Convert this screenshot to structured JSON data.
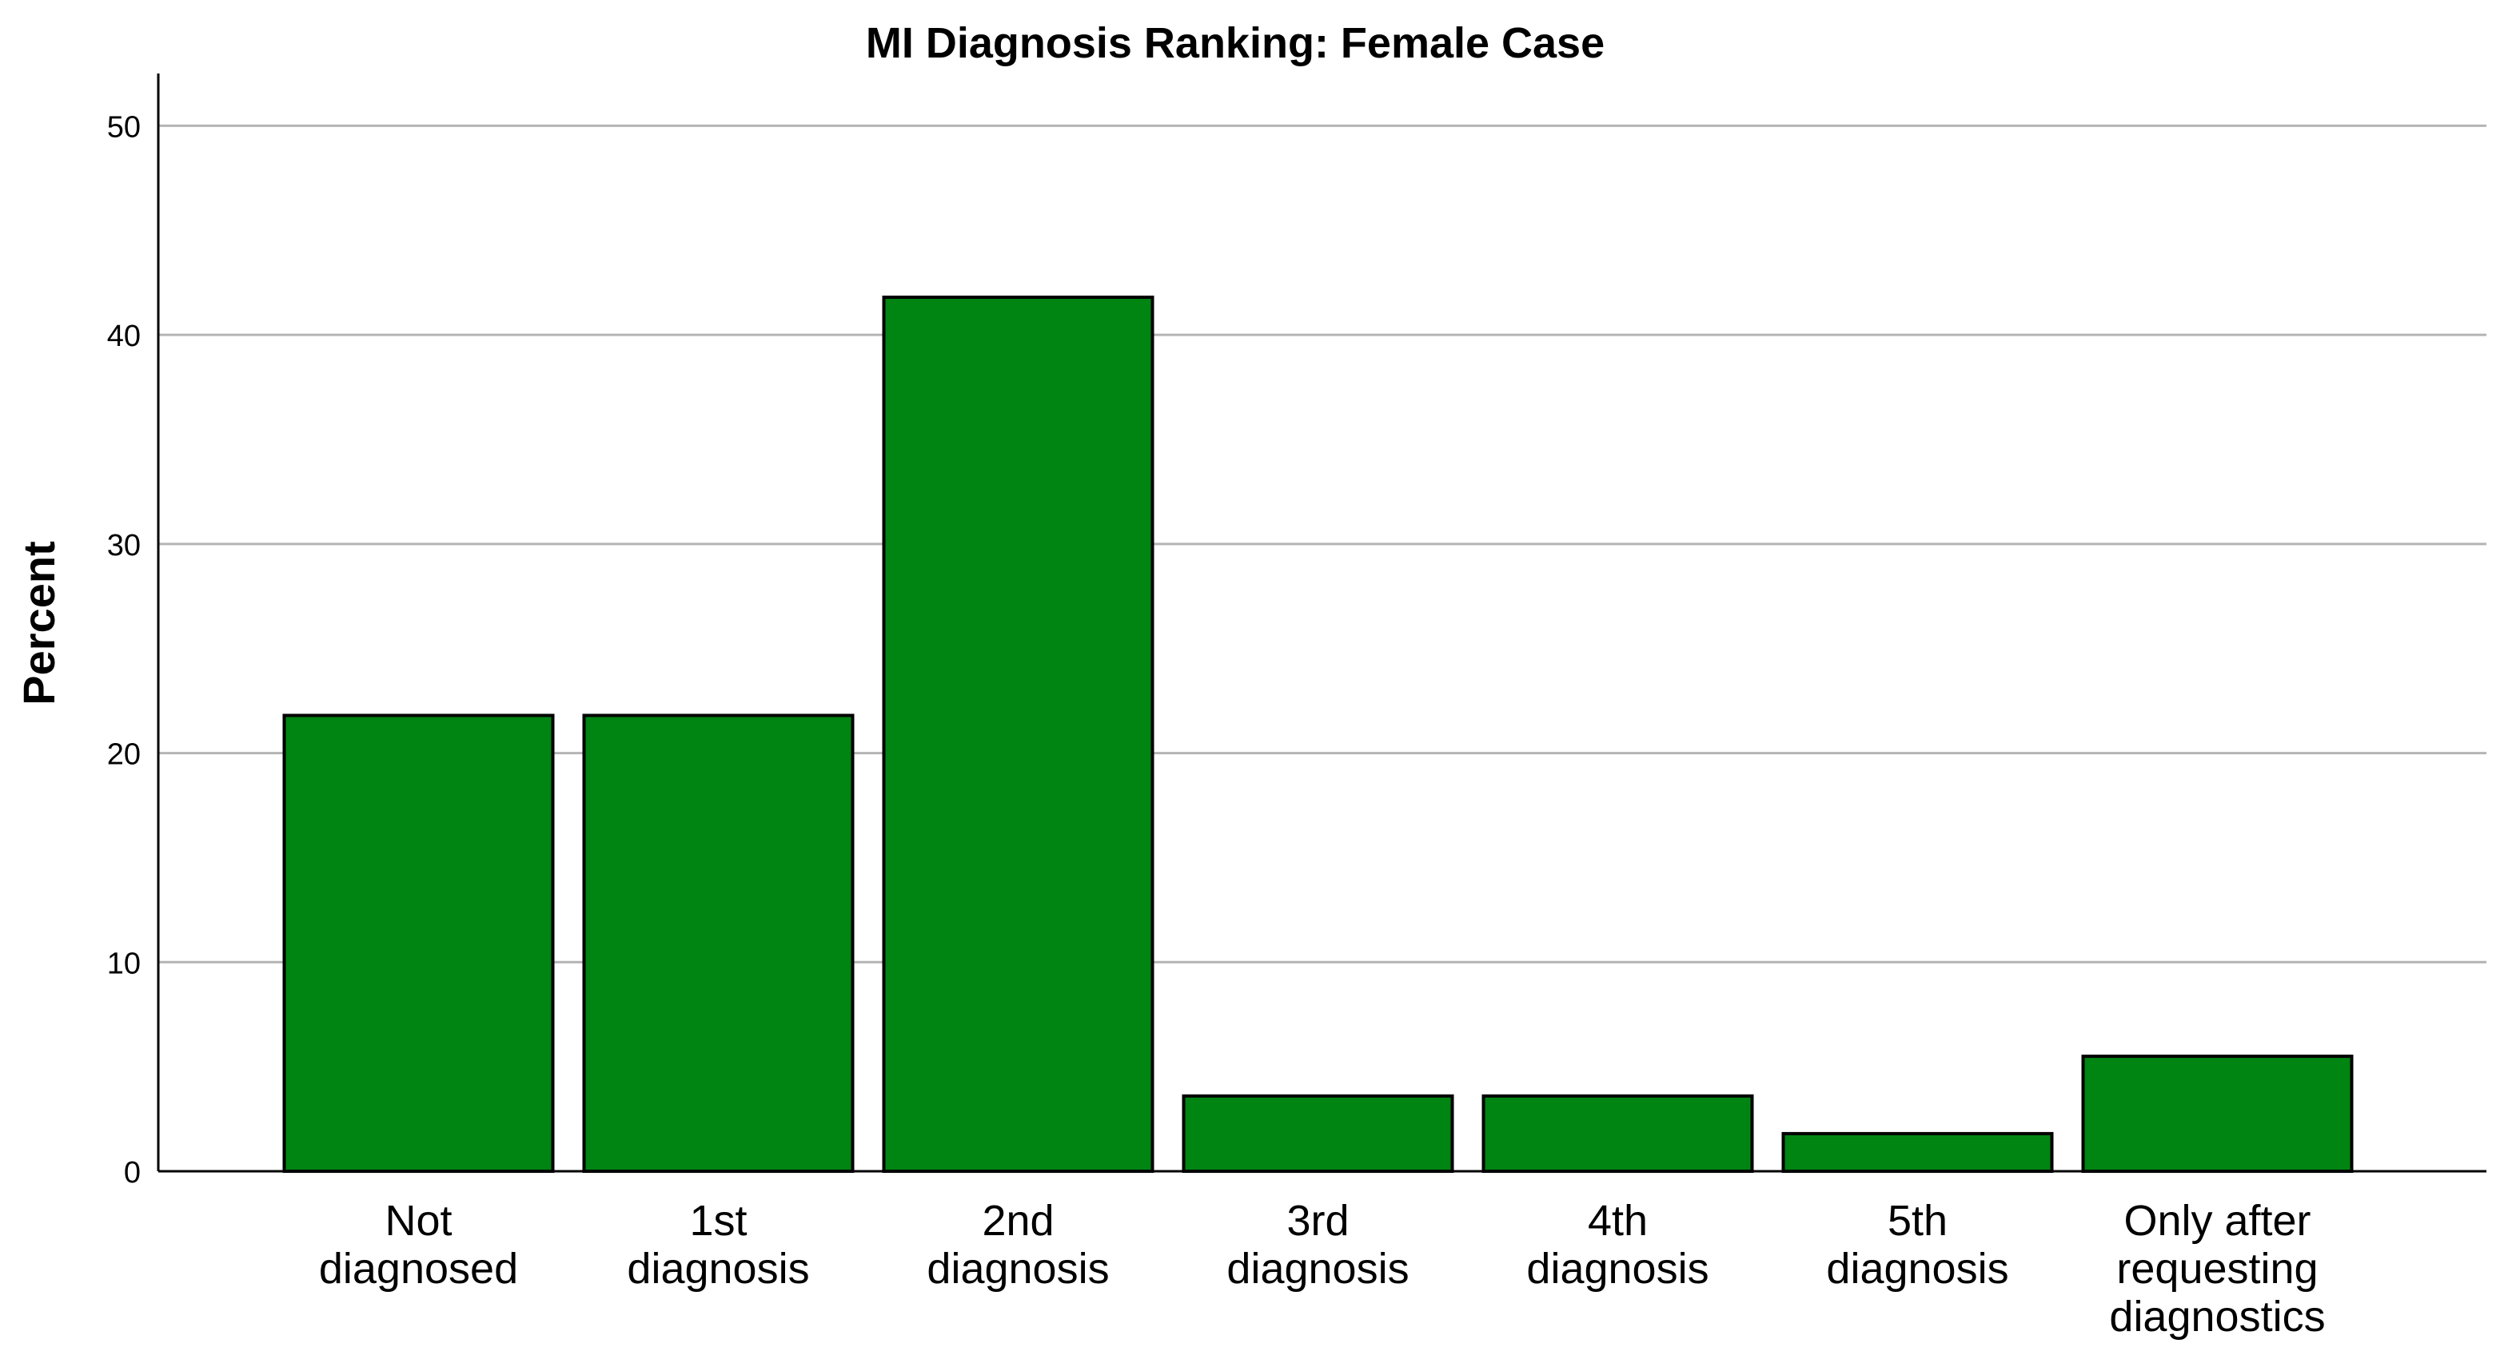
{
  "chart_data": {
    "type": "bar",
    "title": "MI Diagnosis Ranking: Female Case",
    "xlabel": "",
    "ylabel": "Percent",
    "ylim": [
      0,
      52.5
    ],
    "yticks": [
      "0",
      "10",
      "20",
      "30",
      "40",
      "50"
    ],
    "grid": true,
    "legend": "none",
    "bar_color": "#008412",
    "categories": [
      [
        "Not",
        "diagnosed"
      ],
      [
        "1st",
        "diagnosis"
      ],
      [
        "2nd",
        "diagnosis"
      ],
      [
        "3rd",
        "diagnosis"
      ],
      [
        "4th",
        "diagnosis"
      ],
      [
        "5th",
        "diagnosis"
      ],
      [
        "Only after",
        "requesting",
        "diagnostics"
      ]
    ],
    "values": [
      21.8,
      21.8,
      41.8,
      3.6,
      3.6,
      1.8,
      5.5
    ]
  }
}
